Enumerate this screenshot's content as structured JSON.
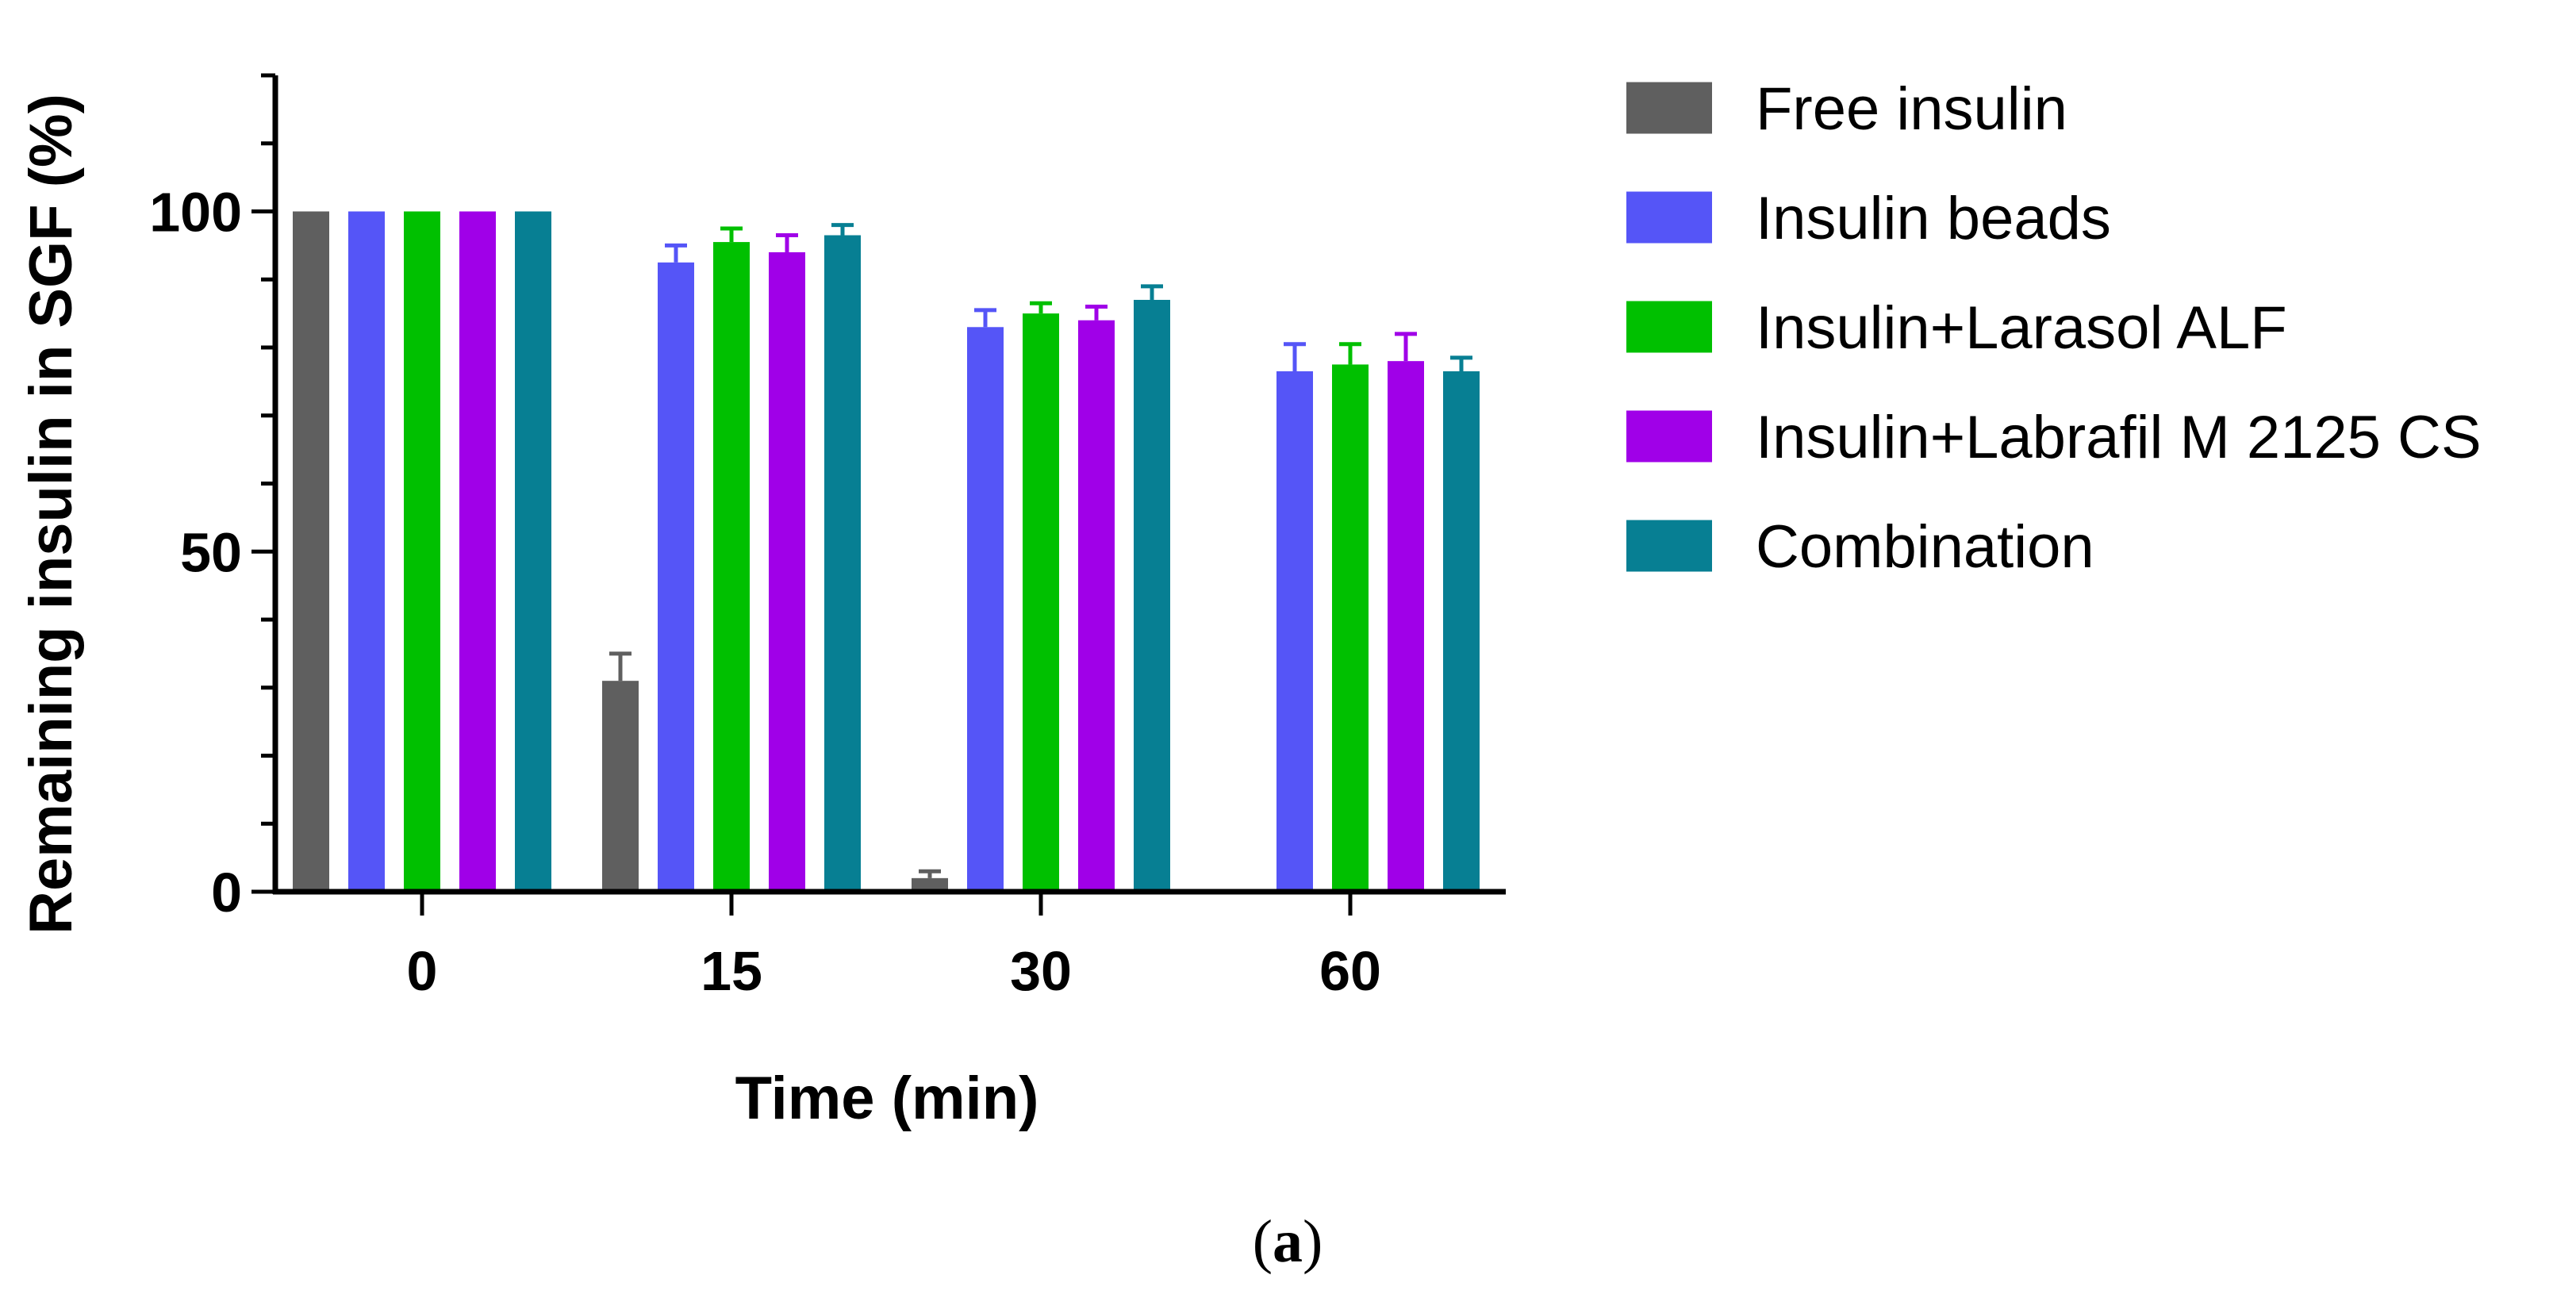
{
  "chart_data": {
    "type": "bar",
    "title": "",
    "xlabel": "Time (min)",
    "ylabel": "Remaining insulin in SGF (%)",
    "categories": [
      "0",
      "15",
      "30",
      "60"
    ],
    "ylim": [
      0,
      120
    ],
    "yticks": [
      "0",
      "50",
      "100"
    ],
    "legend_position": "right",
    "series": [
      {
        "name": "Free insulin",
        "color": "#5f5f5f",
        "values": [
          100,
          31,
          2,
          0
        ],
        "errors": [
          0,
          4,
          1,
          0
        ]
      },
      {
        "name": "Insulin beads",
        "color": "#5555f7",
        "values": [
          100,
          92.5,
          83,
          76.5
        ],
        "errors": [
          0,
          2.5,
          2.5,
          4
        ]
      },
      {
        "name": "Insulin+Larasol ALF",
        "color": "#00c000",
        "values": [
          100,
          95.5,
          85,
          77.5
        ],
        "errors": [
          0,
          2,
          1.5,
          3
        ]
      },
      {
        "name": "Insulin+Labrafil M 2125 CS",
        "color": "#a000e8",
        "values": [
          100,
          94,
          84,
          78
        ],
        "errors": [
          0,
          2.5,
          2,
          4
        ]
      },
      {
        "name": "Combination",
        "color": "#077f93",
        "values": [
          100,
          96.5,
          87,
          76.5
        ],
        "errors": [
          0,
          1.5,
          2,
          2
        ]
      }
    ]
  },
  "panel_label": {
    "open": "(",
    "letter": "a",
    "close": ")"
  }
}
